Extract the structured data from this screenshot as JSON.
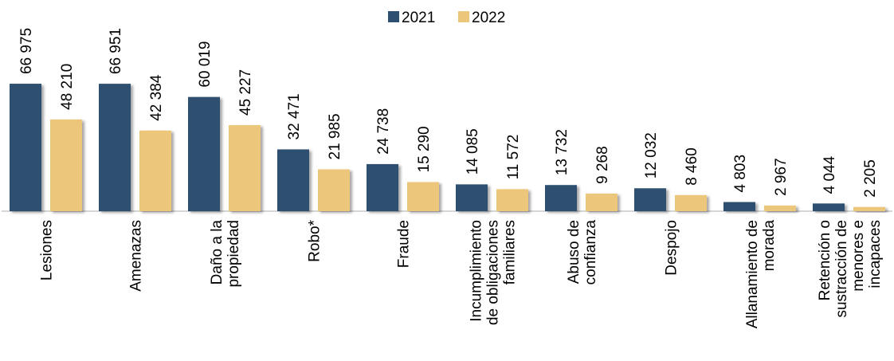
{
  "chart_data": {
    "type": "bar",
    "categories": [
      [
        "Lesiones"
      ],
      [
        "Amenazas"
      ],
      [
        "Daño a la",
        "propiedad"
      ],
      [
        "Robo*"
      ],
      [
        "Fraude"
      ],
      [
        "Incumplimiento",
        "de obligaciones",
        "familiares"
      ],
      [
        "Abuso de",
        "confianza"
      ],
      [
        "Despojo"
      ],
      [
        "Allanamiento de",
        "morada"
      ],
      [
        "Retención o",
        "sustracción de",
        "menores e",
        "incapaces"
      ]
    ],
    "series": [
      {
        "name": "2021",
        "color": "#2d5070",
        "values": [
          66975,
          66951,
          60019,
          32471,
          24738,
          14085,
          13732,
          12032,
          4803,
          4044
        ],
        "labels": [
          "66 975",
          "66 951",
          "60 019",
          "32 471",
          "24 738",
          "14 085",
          "13 732",
          "12 032",
          "4 803",
          "4 044"
        ]
      },
      {
        "name": "2022",
        "color": "#ecc67a",
        "values": [
          48210,
          42384,
          45227,
          21985,
          15290,
          11572,
          9268,
          8460,
          2967,
          2205
        ],
        "labels": [
          "48 210",
          "42 384",
          "45 227",
          "21 985",
          "15 290",
          "11 572",
          "9 268",
          "8 460",
          "2 967",
          "2 205"
        ]
      }
    ],
    "legend_position": "top-center",
    "grid": false,
    "ylim": [
      0,
      67000
    ]
  }
}
